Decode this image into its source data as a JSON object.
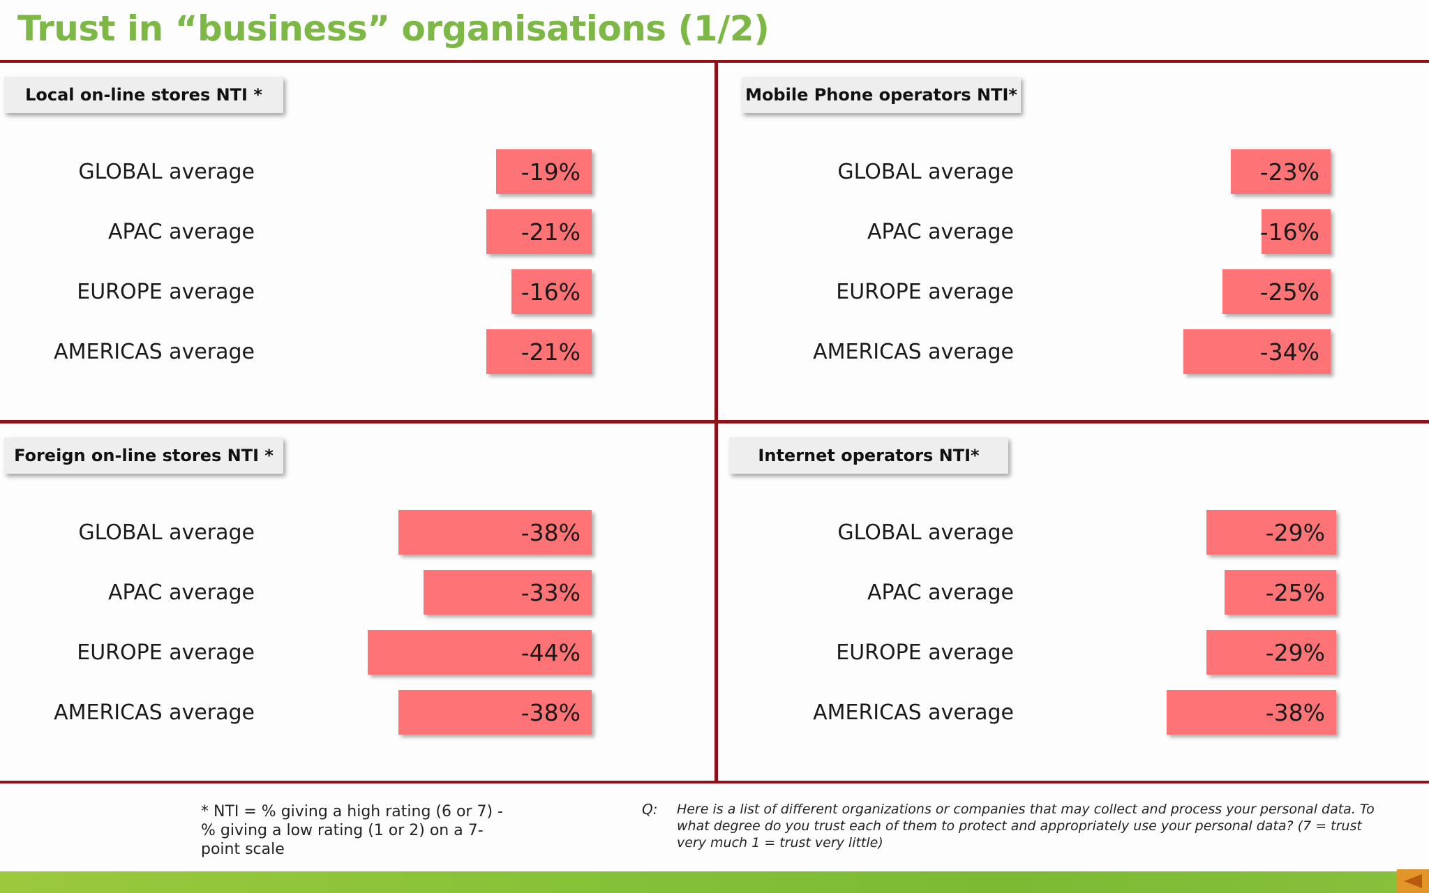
{
  "title": "Trust in “business” organisations (1/2)",
  "chart_data": [
    {
      "type": "bar",
      "title": "Local on-line stores NTI *",
      "categories": [
        "GLOBAL average",
        "APAC average",
        "EUROPE average",
        "AMERICAS average"
      ],
      "values": [
        -19,
        -21,
        -16,
        -21
      ],
      "value_labels": [
        "-19%",
        "-21%",
        "-16%",
        "-21%"
      ]
    },
    {
      "type": "bar",
      "title": "Mobile Phone operators NTI*",
      "categories": [
        "GLOBAL average",
        "APAC average",
        "EUROPE average",
        "AMERICAS average"
      ],
      "values": [
        -23,
        -16,
        -25,
        -34
      ],
      "value_labels": [
        "-23%",
        "-16%",
        "-25%",
        "-34%"
      ]
    },
    {
      "type": "bar",
      "title": "Foreign on-line stores NTI *",
      "categories": [
        "GLOBAL average",
        "APAC average",
        "EUROPE average",
        "AMERICAS average"
      ],
      "values": [
        -38,
        -33,
        -44,
        -38
      ],
      "value_labels": [
        "-38%",
        "-33%",
        "-44%",
        "-38%"
      ]
    },
    {
      "type": "bar",
      "title": "Internet operators NTI*",
      "categories": [
        "GLOBAL average",
        "APAC average",
        "EUROPE average",
        "AMERICAS average"
      ],
      "values": [
        -29,
        -25,
        -29,
        -38
      ],
      "value_labels": [
        "-29%",
        "-25%",
        "-29%",
        "-38%"
      ]
    }
  ],
  "footnote": "* NTI = % giving a high rating (6 or 7) - % giving a low rating (1 or 2) on a 7-point scale",
  "question": {
    "prefix": "Q:",
    "text": "Here is a list of different organizations or companies that may collect and process your personal data.  To what degree do you trust each of them to protect and appropriately use your personal data? (7 = trust very much 1 = trust very little)"
  },
  "colors": {
    "title": "#7db847",
    "rules": "#8e1018",
    "bar": "#fe7375",
    "footer_band": "#86c238",
    "nav_button": "#e2962a"
  },
  "icons": {
    "nav": "back-arrow-icon"
  }
}
